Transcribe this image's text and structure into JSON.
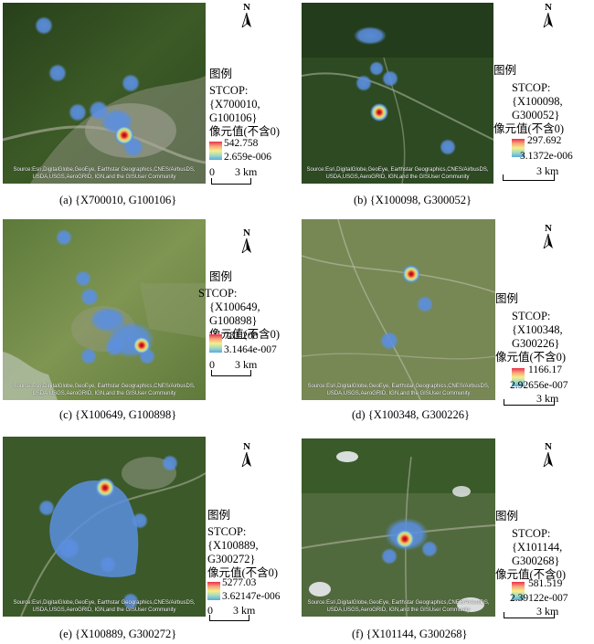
{
  "common": {
    "legend_title": "图例",
    "stcop_label": "STCOP:",
    "pixel_label": "像元值(不含0)",
    "scale_zero": "0",
    "scale_three": "3 km",
    "north_letter": "N",
    "source_text": "Source:Esri,DigitalGlobe,GeoEye, Earthstar Geographics,CNES/AirbusDS,\nUSDA,USGS,AeroGRID, IGN,and the GISUser Community"
  },
  "panels": [
    {
      "id": "a",
      "caption": "(a) {X700010, G100106}",
      "stcop_line1": "{X700010,",
      "stcop_line2": "G100106}",
      "max": "542.758",
      "min": "2.659e-006"
    },
    {
      "id": "b",
      "caption": "(b) {X100098, G300052}",
      "stcop_line1": "{X100098,",
      "stcop_line2": "G300052}",
      "max": "297.692",
      "min": "3.1372e-006"
    },
    {
      "id": "c",
      "caption": "(c) {X100649, G100898}",
      "stcop_line1": "{X100649,",
      "stcop_line2": "G100898}",
      "max": "783.208",
      "min": "3.1464e-007"
    },
    {
      "id": "d",
      "caption": "(d) {X100348, G300226}",
      "stcop_line1": "{X100348,",
      "stcop_line2": "G300226}",
      "max": "1166.17",
      "min": "2.92656e-007"
    },
    {
      "id": "e",
      "caption": "(e) {X100889, G300272}",
      "stcop_line1": "{X100889,",
      "stcop_line2": "G300272}",
      "max": "5277.03",
      "min": "3.62147e-006"
    },
    {
      "id": "f",
      "caption": "(f) {X101144, G300268}",
      "stcop_line1": "{X101144,",
      "stcop_line2": "G300268}",
      "max": "581.519",
      "min": "2.39122e-007"
    }
  ],
  "colors": {
    "hotspot_core": "#c4141c",
    "hotspot_mid": "#f5e26a",
    "density_low": "#4f8fdb",
    "vegetation_dark": "#2f4a1f",
    "vegetation_light": "#6f8a45",
    "urban": "#a8a69a"
  }
}
